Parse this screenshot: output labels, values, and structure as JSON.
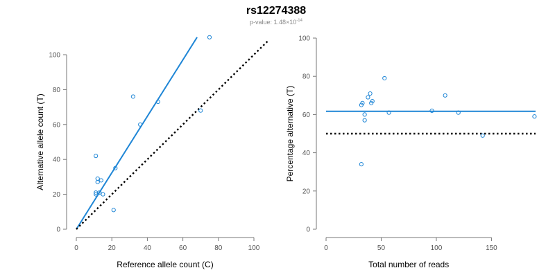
{
  "figure": {
    "title": "rs12274388",
    "subtitle": {
      "prefix": "p-value: 1.48×10",
      "exponent": "-14"
    }
  },
  "colors": {
    "points": "#1f86d6",
    "fit": "#1f86d6",
    "reference": "#000000",
    "axis": "#777777",
    "tick_text": "#555555"
  },
  "chart_data": [
    {
      "type": "scatter",
      "title": "",
      "xlabel": "Reference allele count (C)",
      "ylabel": "Alternative allele count (T)",
      "xlim": [
        0,
        100
      ],
      "ylim": [
        0,
        100
      ],
      "xticks": [
        0,
        20,
        40,
        60,
        80,
        100
      ],
      "yticks": [
        0,
        20,
        40,
        60,
        80,
        100
      ],
      "grid": false,
      "points": {
        "x": [
          11,
          11,
          11,
          12,
          12,
          13,
          14,
          15,
          21,
          22,
          32,
          36,
          46,
          70,
          75
        ],
        "y": [
          42,
          21,
          20,
          29,
          27,
          21,
          28,
          20,
          11,
          35,
          76,
          60,
          73,
          68,
          110
        ]
      },
      "lines": [
        {
          "kind": "fit",
          "style": "solid",
          "x": [
            0,
            68
          ],
          "y": [
            0,
            110
          ]
        },
        {
          "kind": "reference",
          "style": "dotted",
          "x": [
            0,
            110
          ],
          "y": [
            0,
            110
          ]
        }
      ]
    },
    {
      "type": "scatter",
      "title": "",
      "xlabel": "Total number of reads",
      "ylabel": "Percentage alternative (T)",
      "xlim": [
        0,
        190
      ],
      "ylim": [
        0,
        100
      ],
      "xticks": [
        0,
        50,
        100,
        150
      ],
      "yticks": [
        0,
        20,
        40,
        60,
        80,
        100
      ],
      "grid": false,
      "points": {
        "x": [
          32,
          32,
          33,
          35,
          35,
          38,
          40,
          41,
          42,
          53,
          57,
          96,
          108,
          120,
          142,
          189
        ],
        "y": [
          34,
          65,
          66,
          60,
          57,
          69,
          71,
          66,
          67,
          79,
          61,
          62,
          70,
          61,
          49,
          59
        ]
      },
      "lines": [
        {
          "kind": "fit",
          "style": "solid",
          "x": [
            0,
            190
          ],
          "y": [
            61.7,
            61.7
          ]
        },
        {
          "kind": "reference",
          "style": "dotted",
          "x": [
            0,
            190
          ],
          "y": [
            50,
            50
          ]
        }
      ]
    }
  ]
}
